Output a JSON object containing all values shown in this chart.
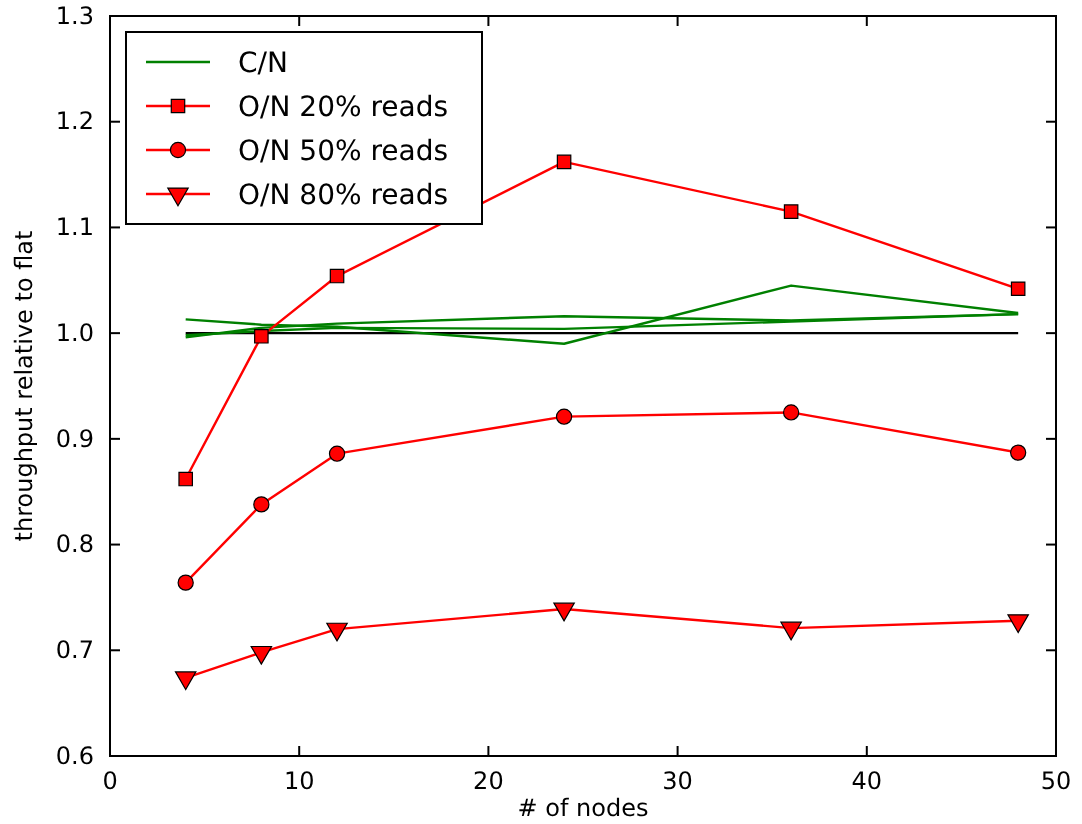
{
  "chart_data": {
    "type": "line",
    "xlabel": "# of nodes",
    "ylabel": "throughput relative to flat",
    "x": [
      4,
      8,
      12,
      24,
      36,
      48
    ],
    "xlim": [
      0,
      50
    ],
    "xticks": [
      0,
      10,
      20,
      30,
      40,
      50
    ],
    "ylim": [
      0.6,
      1.3
    ],
    "yticks": [
      {
        "value": 0.6,
        "label": "0.6"
      },
      {
        "value": 0.7,
        "label": "0.7"
      },
      {
        "value": 0.8,
        "label": "0.8"
      },
      {
        "value": 0.9,
        "label": "0.9"
      },
      {
        "value": 1.0,
        "label": "1.0"
      },
      {
        "value": 1.1,
        "label": "1.1"
      },
      {
        "value": 1.2,
        "label": "1.2"
      },
      {
        "value": 1.3,
        "label": "1.3"
      }
    ],
    "grid": false,
    "legend": "top left",
    "series": [
      {
        "color": "#000000",
        "marker": "none",
        "values": [
          1.0,
          1.0,
          1.0,
          1.0,
          1.0,
          1.0
        ]
      },
      {
        "name": "C/N",
        "color": "#008000",
        "marker": "none",
        "values": [
          1.013,
          1.008,
          1.006,
          0.99,
          1.045,
          1.019
        ]
      },
      {
        "color": "#008000",
        "marker": "none",
        "values": [
          0.996,
          1.005,
          1.009,
          1.016,
          1.012,
          1.018
        ]
      },
      {
        "color": "#008000",
        "marker": "none",
        "values": [
          0.998,
          1.002,
          1.005,
          1.004,
          1.011,
          1.018
        ]
      },
      {
        "name": "O/N 20% reads",
        "color": "#ff0000",
        "marker": "square",
        "values": [
          0.862,
          0.997,
          1.054,
          1.162,
          1.115,
          1.042
        ]
      },
      {
        "name": "O/N 50% reads",
        "color": "#ff0000",
        "marker": "circle",
        "values": [
          0.764,
          0.838,
          0.886,
          0.921,
          0.925,
          0.887
        ]
      },
      {
        "name": "O/N 80% reads",
        "color": "#ff0000",
        "marker": "triangle",
        "values": [
          0.674,
          0.698,
          0.72,
          0.739,
          0.721,
          0.728
        ]
      }
    ]
  }
}
